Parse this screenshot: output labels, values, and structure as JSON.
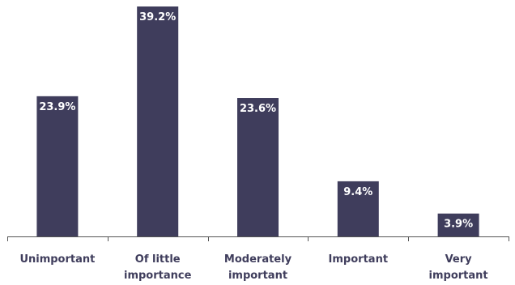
{
  "chart_data": {
    "type": "bar",
    "categories": [
      [
        "Unimportant"
      ],
      [
        "Of little",
        "importance"
      ],
      [
        "Moderately",
        "important"
      ],
      [
        "Important"
      ],
      [
        "Very",
        "important"
      ]
    ],
    "values": [
      23.9,
      39.2,
      23.6,
      9.4,
      3.9
    ],
    "value_labels": [
      "23.9%",
      "39.2%",
      "23.6%",
      "9.4%",
      "3.9%"
    ],
    "ylim": [
      0,
      40
    ],
    "grid": false,
    "colors": {
      "bar": "#3f3d5c",
      "value_text": "#ffffff",
      "axis": "#555555"
    }
  }
}
